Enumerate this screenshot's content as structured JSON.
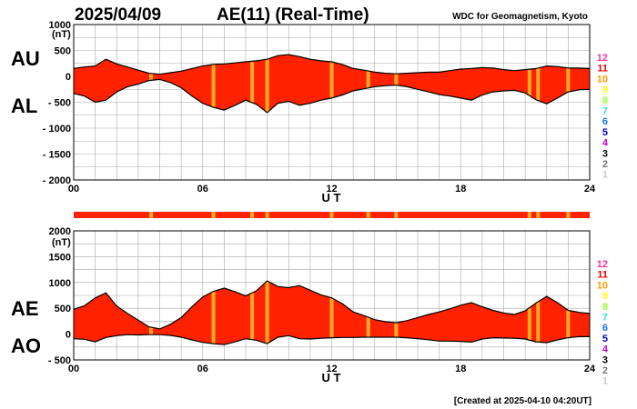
{
  "header": {
    "date": "2025/04/09",
    "title": "AE(11) (Real-Time)",
    "source": "WDC for Geomagnetism, Kyoto"
  },
  "footer": {
    "created": "[Created at 2025-04-10 04:20UT]"
  },
  "colors": {
    "fill": "#ff2200",
    "highlight": "#ffaa22",
    "grid": "#aaaaaa",
    "outline": "#000000"
  },
  "station_legend": [
    {
      "label": "12",
      "color": "#ff3399"
    },
    {
      "label": "11",
      "color": "#ee0000"
    },
    {
      "label": "10",
      "color": "#ff9900"
    },
    {
      "label": "9",
      "color": "#ffff00"
    },
    {
      "label": "8",
      "color": "#99ff33"
    },
    {
      "label": "7",
      "color": "#33dddd"
    },
    {
      "label": "6",
      "color": "#1177ff"
    },
    {
      "label": "5",
      "color": "#0000cc"
    },
    {
      "label": "4",
      "color": "#cc00cc"
    },
    {
      "label": "3",
      "color": "#000000"
    },
    {
      "label": "2",
      "color": "#777777"
    },
    {
      "label": "1",
      "color": "#cccccc"
    }
  ],
  "chart_data": [
    {
      "type": "area",
      "name_labels": {
        "upper": "AU",
        "lower": "AL"
      },
      "unit": "(nT)",
      "xlabel": "U T",
      "xlim": [
        0,
        24
      ],
      "x_ticks": [
        0,
        6,
        12,
        18,
        24
      ],
      "x_tick_labels": [
        "00",
        "06",
        "12",
        "18",
        "24"
      ],
      "ylim": [
        -2000,
        1000
      ],
      "y_ticks": [
        1000,
        500,
        0,
        -500,
        -1000,
        -1500,
        -2000
      ],
      "y_tick_labels": [
        "1000",
        "500",
        "0",
        "- 500",
        "- 1000",
        "- 1500",
        "- 2000"
      ],
      "grid": true,
      "x": [
        0,
        0.5,
        1,
        1.5,
        2,
        2.5,
        3,
        3.5,
        4,
        4.5,
        5,
        5.5,
        6,
        6.5,
        7,
        7.5,
        8,
        8.5,
        9,
        9.5,
        10,
        10.5,
        11,
        11.5,
        12,
        12.5,
        13,
        13.5,
        14,
        14.5,
        15,
        15.5,
        16,
        16.5,
        17,
        17.5,
        18,
        18.5,
        19,
        19.5,
        20,
        20.5,
        21,
        21.5,
        22,
        22.5,
        23,
        23.5,
        24
      ],
      "series": [
        {
          "name": "AU",
          "values": [
            150,
            180,
            200,
            330,
            240,
            180,
            120,
            60,
            40,
            70,
            100,
            150,
            200,
            230,
            240,
            260,
            280,
            300,
            330,
            400,
            420,
            380,
            330,
            300,
            280,
            230,
            150,
            120,
            80,
            60,
            50,
            60,
            70,
            80,
            80,
            110,
            140,
            150,
            170,
            160,
            130,
            110,
            130,
            150,
            200,
            190,
            160,
            160,
            150
          ]
        },
        {
          "name": "AL",
          "values": [
            -330,
            -380,
            -500,
            -460,
            -300,
            -200,
            -150,
            -80,
            -60,
            -120,
            -220,
            -380,
            -520,
            -600,
            -650,
            -560,
            -460,
            -540,
            -700,
            -520,
            -480,
            -560,
            -520,
            -460,
            -420,
            -360,
            -280,
            -240,
            -200,
            -180,
            -170,
            -200,
            -250,
            -300,
            -350,
            -380,
            -420,
            -460,
            -360,
            -300,
            -280,
            -270,
            -320,
            -450,
            -530,
            -420,
            -300,
            -260,
            -250
          ]
        }
      ],
      "highlight_hours": [
        3.6,
        6.5,
        8.3,
        9.0,
        12.0,
        13.7,
        15.0,
        21.2,
        21.6,
        23.0
      ]
    },
    {
      "type": "area",
      "name_labels": {
        "upper": "AE",
        "lower": "AO"
      },
      "unit": "(nT)",
      "xlabel": "U T",
      "xlim": [
        0,
        24
      ],
      "x_ticks": [
        0,
        6,
        12,
        18,
        24
      ],
      "x_tick_labels": [
        "00",
        "06",
        "12",
        "18",
        "24"
      ],
      "ylim": [
        -500,
        2000
      ],
      "y_ticks": [
        2000,
        1500,
        1000,
        500,
        0,
        -500
      ],
      "y_tick_labels": [
        "2000",
        "1500",
        "1000",
        "500",
        "0",
        "- 500"
      ],
      "grid": true,
      "x": [
        0,
        0.5,
        1,
        1.5,
        2,
        2.5,
        3,
        3.5,
        4,
        4.5,
        5,
        5.5,
        6,
        6.5,
        7,
        7.5,
        8,
        8.5,
        9,
        9.5,
        10,
        10.5,
        11,
        11.5,
        12,
        12.5,
        13,
        13.5,
        14,
        14.5,
        15,
        15.5,
        16,
        16.5,
        17,
        17.5,
        18,
        18.5,
        19,
        19.5,
        20,
        20.5,
        21,
        21.5,
        22,
        22.5,
        23,
        23.5,
        24
      ],
      "series": [
        {
          "name": "AE",
          "values": [
            480,
            550,
            700,
            800,
            540,
            400,
            270,
            140,
            100,
            190,
            320,
            530,
            720,
            830,
            890,
            820,
            740,
            840,
            1030,
            920,
            900,
            940,
            850,
            760,
            700,
            590,
            430,
            360,
            280,
            240,
            220,
            260,
            320,
            380,
            430,
            490,
            560,
            610,
            530,
            460,
            410,
            380,
            450,
            600,
            730,
            610,
            460,
            420,
            400
          ]
        },
        {
          "name": "AO",
          "values": [
            -90,
            -100,
            -150,
            -65,
            -30,
            -10,
            -15,
            -10,
            -10,
            -25,
            -60,
            -115,
            -160,
            -185,
            -205,
            -150,
            -90,
            -120,
            -185,
            -60,
            -30,
            -90,
            -95,
            -80,
            -70,
            -65,
            -65,
            -60,
            -60,
            -60,
            -60,
            -70,
            -90,
            -110,
            -135,
            -135,
            -140,
            -155,
            -95,
            -70,
            -75,
            -80,
            -95,
            -150,
            -165,
            -115,
            -70,
            -50,
            -50
          ]
        }
      ],
      "highlight_hours": [
        3.6,
        6.5,
        8.3,
        9.0,
        12.0,
        13.7,
        15.0,
        21.2,
        21.6,
        23.0
      ]
    }
  ]
}
